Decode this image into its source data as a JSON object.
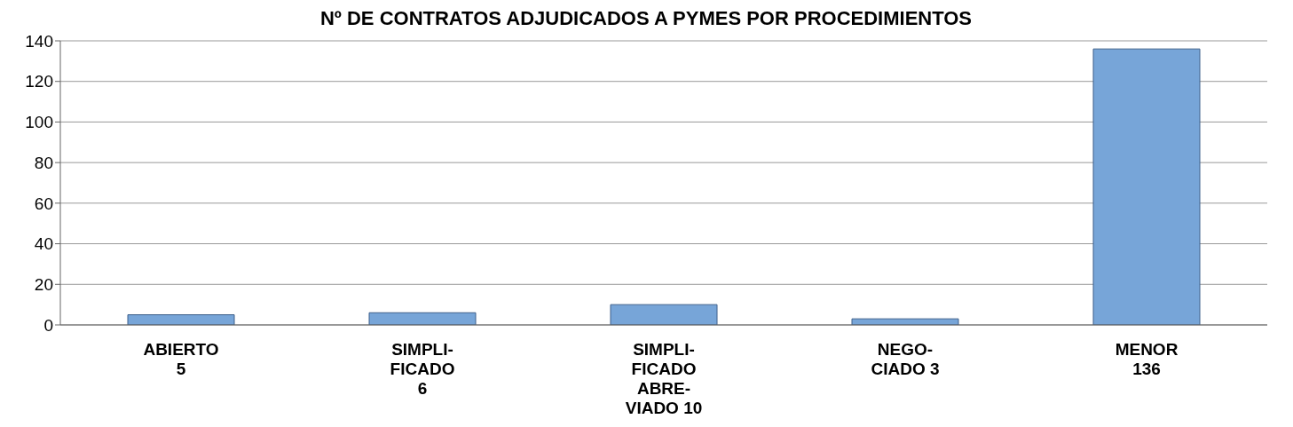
{
  "chart_data": {
    "type": "bar",
    "title": "Nº DE CONTRATOS ADJUDICADOS A PYMES POR PROCEDIMIENTOS",
    "categories": [
      "ABIERTO\n5",
      "SIMPLI-\nFICADO\n6",
      "SIMPLI-\nFICADO\nABRE-\nVIADO 10",
      "NEGO-\nCIADO 3",
      "MENOR\n136"
    ],
    "values": [
      5,
      6,
      10,
      3,
      136
    ],
    "color": "#77a5d8",
    "ylim": [
      0,
      140
    ],
    "yticks": [
      0,
      20,
      40,
      60,
      80,
      100,
      120,
      140
    ],
    "grid": "y"
  }
}
